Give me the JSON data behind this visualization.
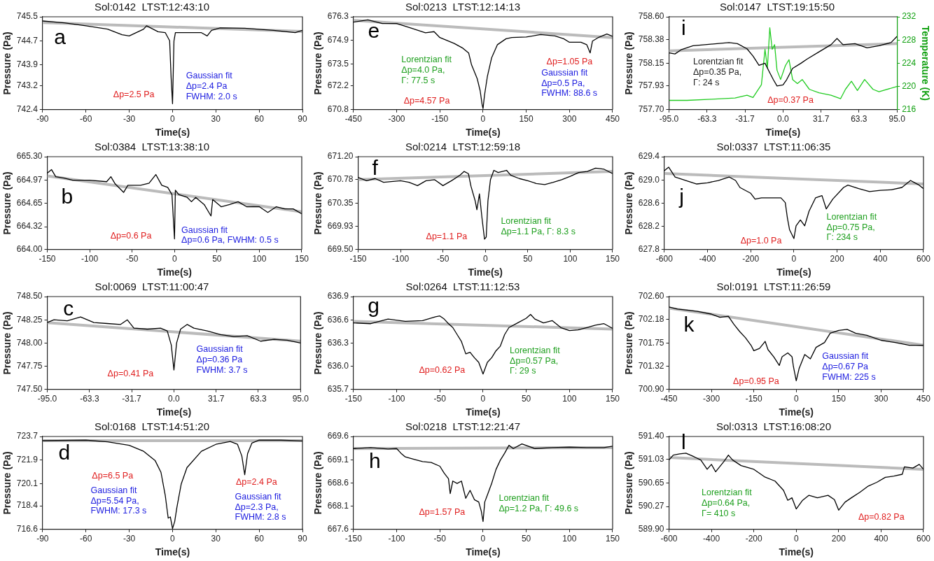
{
  "chart_data": [
    {
      "type": "line",
      "title": "Sol:0142  LTST:12:43:10",
      "xlabel": "Time(s)",
      "ylabel": "Pressure (Pa)",
      "marker": "none",
      "grid": false,
      "xlim": [
        -90,
        90
      ],
      "xticks": [
        -90,
        -60,
        -30,
        0,
        30,
        60,
        90
      ],
      "ylim": [
        742.4,
        745.5
      ],
      "yticks": [
        742.4,
        743.2,
        743.9,
        744.7,
        745.5
      ],
      "series": [
        {
          "color": "#000000",
          "x": [
            -90,
            -75,
            -60,
            -45,
            -35,
            -30,
            -20,
            -18,
            -10,
            -5,
            -2,
            -1,
            0,
            1,
            2,
            10,
            20,
            24,
            27,
            33,
            50,
            70,
            85,
            90
          ],
          "values": [
            745.36,
            745.3,
            745.2,
            745.09,
            744.9,
            744.86,
            745.09,
            745.2,
            745.0,
            744.97,
            744.7,
            743.5,
            742.6,
            744.7,
            744.97,
            744.97,
            744.97,
            744.86,
            745.05,
            745.13,
            745.12,
            745.05,
            744.97,
            745.05
          ]
        },
        {
          "color": "#bbbbbb",
          "x": [
            -90,
            90
          ],
          "values": [
            745.31,
            745.01
          ]
        }
      ],
      "annotations": [
        "a",
        "Δp=2.5 Pa",
        "Gaussian fit\nΔp=2.4 Pa\nFWHM: 2.0 s"
      ]
    },
    {
      "type": "line",
      "title": "Sol:0384  LTST:13:38:10",
      "xlabel": "Time(s)",
      "ylabel": "Pressure (Pa)",
      "marker": "none",
      "grid": false,
      "xlim": [
        -150,
        150
      ],
      "xticks": [
        -150,
        -100,
        -50,
        0,
        50,
        100,
        150
      ],
      "ylim": [
        664.0,
        665.3
      ],
      "yticks": [
        {
          "value": 664,
          "label": "664.00"
        },
        664.32,
        664.65,
        664.97,
        {
          "value": 665.3,
          "label": "665.30"
        }
      ],
      "series": [
        {
          "color": "#000000",
          "x": [
            -150,
            -145,
            -140,
            -130,
            -120,
            -100,
            -80,
            -75,
            -70,
            -60,
            -55,
            -40,
            -30,
            -22,
            -15,
            -8,
            -3,
            0,
            1,
            5,
            15,
            20,
            25,
            35,
            43,
            45,
            55,
            65,
            75,
            85,
            100,
            110,
            120,
            130,
            140,
            150
          ],
          "values": [
            665.07,
            665.12,
            665.02,
            665.0,
            664.97,
            664.97,
            664.95,
            665.02,
            664.92,
            664.8,
            664.9,
            664.9,
            664.93,
            665.05,
            664.9,
            664.87,
            664.77,
            664.15,
            664.83,
            664.77,
            664.73,
            664.67,
            664.73,
            664.63,
            664.47,
            664.7,
            664.6,
            664.63,
            664.67,
            664.6,
            664.6,
            664.52,
            664.6,
            664.57,
            664.57,
            664.5
          ]
        },
        {
          "color": "#bbbbbb",
          "x": [
            -150,
            150
          ],
          "values": [
            665.03,
            664.53
          ]
        }
      ],
      "annotations": [
        "b",
        "Δp=0.6 Pa",
        "Gaussian fit\nΔp=0.6 Pa, FWHM: 0.5 s"
      ]
    },
    {
      "type": "line",
      "title": "Sol:0069  LTST:11:00:47",
      "xlabel": "Time(s)",
      "ylabel": "Pressure (Pa)",
      "marker": "none",
      "grid": false,
      "xlim": [
        -95,
        95
      ],
      "xticks": [
        {
          "value": -95,
          "label": "-95.0"
        },
        -63.3,
        -31.7,
        {
          "value": 0,
          "label": "0.0"
        },
        31.7,
        63.3,
        {
          "value": 95,
          "label": "95.0"
        }
      ],
      "ylim": [
        747.5,
        748.5
      ],
      "yticks": [
        {
          "value": 747.5,
          "label": "747.50"
        },
        747.75,
        {
          "value": 748,
          "label": "748.00"
        },
        748.25,
        {
          "value": 748.5,
          "label": "748.50"
        }
      ],
      "series": [
        {
          "color": "#000000",
          "x": [
            -95,
            -90,
            -80,
            -70,
            -60,
            -50,
            -40,
            -35,
            -30,
            -20,
            -10,
            -5,
            -2,
            0,
            2,
            5,
            10,
            15,
            25,
            35,
            45,
            55,
            65,
            75,
            85,
            95
          ],
          "values": [
            748.22,
            748.25,
            748.24,
            748.28,
            748.22,
            748.21,
            748.2,
            748.25,
            748.16,
            748.15,
            748.16,
            748.13,
            747.98,
            747.71,
            748.0,
            748.15,
            748.2,
            748.16,
            748.13,
            748.09,
            748.07,
            748.08,
            748.02,
            748.04,
            748.03,
            748.0
          ]
        },
        {
          "color": "#bbbbbb",
          "x": [
            -95,
            95
          ],
          "values": [
            748.22,
            748.02
          ]
        }
      ],
      "annotations": [
        "c",
        "Δp=0.41 Pa",
        "Gaussian fit\nΔp=0.36 Pa\nFWHM: 3.7 s"
      ]
    },
    {
      "type": "line",
      "title": "Sol:0168  LTST:14:51:20",
      "xlabel": "Time(s)",
      "ylabel": "Pressure (Pa)",
      "marker": "none",
      "grid": false,
      "xlim": [
        -90,
        90
      ],
      "xticks": [
        -90,
        -60,
        -30,
        0,
        30,
        60,
        90
      ],
      "ylim": [
        716.6,
        723.7
      ],
      "yticks": [
        716.6,
        718.4,
        720.1,
        721.9,
        723.7
      ],
      "series": [
        {
          "color": "#000000",
          "x": [
            -90,
            -60,
            -45,
            -30,
            -20,
            -12,
            -8,
            -5,
            -3,
            -1.5,
            0,
            1.5,
            3,
            6,
            10,
            20,
            30,
            40,
            45,
            48,
            50,
            52,
            55,
            60,
            75,
            90
          ],
          "values": [
            723.38,
            723.42,
            723.29,
            723.02,
            722.57,
            721.85,
            720.96,
            719.17,
            717.46,
            717.55,
            716.66,
            717.2,
            718.27,
            720.06,
            721.32,
            722.57,
            723.1,
            723.32,
            723.1,
            722.21,
            720.78,
            722.39,
            723.2,
            723.43,
            723.42,
            723.36
          ]
        },
        {
          "color": "#bbbbbb",
          "x": [
            -90,
            90
          ],
          "values": [
            723.38,
            723.38
          ]
        }
      ],
      "annotations": [
        "d",
        "Δp=6.5 Pa",
        "Gaussian fit\nΔp=5.54 Pa,\nFWHM: 17.3 s",
        "Δp=2.4 Pa",
        "Gaussian fit\nΔp=2.3 Pa,\nFWHM: 2.8 s"
      ]
    },
    {
      "type": "line",
      "title": "Sol:0213  LTST:12:14:13",
      "xlabel": "Time(s)",
      "ylabel": "Pressure (Pa)",
      "marker": "none",
      "grid": false,
      "xlim": [
        -450,
        450
      ],
      "xticks": [
        -450,
        -300,
        -150,
        0,
        150,
        300,
        450
      ],
      "ylim": [
        670.8,
        676.3
      ],
      "yticks": [
        670.8,
        672.2,
        673.5,
        674.9,
        676.3
      ],
      "series": [
        {
          "color": "#000000",
          "x": [
            -450,
            -400,
            -350,
            -300,
            -250,
            -200,
            -170,
            -150,
            -100,
            -70,
            -50,
            -40,
            -20,
            -10,
            -3,
            0,
            5,
            15,
            30,
            50,
            80,
            100,
            150,
            200,
            250,
            280,
            300,
            340,
            360,
            372,
            380,
            400,
            430,
            450
          ],
          "values": [
            675.98,
            676.12,
            675.9,
            675.9,
            675.63,
            675.35,
            675.42,
            675.07,
            674.72,
            674.44,
            674.16,
            673.46,
            672.62,
            671.92,
            671.08,
            670.87,
            671.64,
            672.76,
            673.88,
            674.65,
            675.0,
            675.07,
            675.1,
            675.25,
            675.17,
            675.0,
            674.79,
            674.79,
            674.65,
            674.16,
            674.86,
            675.07,
            675.28,
            675.14
          ]
        },
        {
          "color": "#bbbbbb",
          "x": [
            -450,
            450
          ],
          "values": [
            676.09,
            675.07
          ]
        }
      ],
      "annotations": [
        "e",
        "Lorentzian fit\nΔp=4.0 Pa,\nΓ: 77.5 s",
        "Δp=4.57 Pa",
        "Δp=1.05 Pa",
        "Gaussian fit\nΔp=0.5 Pa,\nFWHM: 88.6 s"
      ]
    },
    {
      "type": "line",
      "title": "Sol:0214  LTST:12:59:18",
      "xlabel": "Time(s)",
      "ylabel": "Pressure (Pa)",
      "marker": "none",
      "grid": false,
      "xlim": [
        -150,
        150
      ],
      "xticks": [
        -150,
        -100,
        -50,
        0,
        50,
        100,
        150
      ],
      "ylim": [
        669.5,
        671.2
      ],
      "yticks": [
        {
          "value": 669.5,
          "label": "669.50"
        },
        669.93,
        670.35,
        670.78,
        {
          "value": 671.2,
          "label": "671.20"
        }
      ],
      "series": [
        {
          "color": "#000000",
          "x": [
            -150,
            -140,
            -130,
            -120,
            -100,
            -90,
            -80,
            -70,
            -60,
            -50,
            -40,
            -30,
            -25,
            -20,
            -17,
            -12,
            -10,
            -7,
            -4,
            -1,
            1,
            3,
            6,
            10,
            15,
            25,
            30,
            40,
            50,
            60,
            70,
            80,
            90,
            100,
            110,
            120,
            130,
            140,
            150
          ],
          "values": [
            670.82,
            670.76,
            670.8,
            670.73,
            670.76,
            670.73,
            670.67,
            670.76,
            670.78,
            670.67,
            670.76,
            670.86,
            670.93,
            670.89,
            670.66,
            670.39,
            670.23,
            670.52,
            670.08,
            669.69,
            669.73,
            670.39,
            670.78,
            670.95,
            670.91,
            670.95,
            670.86,
            670.8,
            670.76,
            670.71,
            670.69,
            670.73,
            670.78,
            670.84,
            670.91,
            670.93,
            670.99,
            670.97,
            670.89
          ]
        },
        {
          "color": "#bbbbbb",
          "x": [
            -150,
            150
          ],
          "values": [
            670.78,
            670.93
          ]
        }
      ],
      "annotations": [
        "f",
        "Δp=1.1 Pa",
        "Lorentzian fit\nΔp=1.1 Pa, Γ: 8.3 s"
      ]
    },
    {
      "type": "line",
      "title": "Sol:0264  LTST:11:12:53",
      "xlabel": "Time(s)",
      "ylabel": "Pressure (Pa)",
      "marker": "none",
      "grid": false,
      "xlim": [
        -150,
        150
      ],
      "xticks": [
        -150,
        -100,
        -50,
        0,
        50,
        100,
        150
      ],
      "ylim": [
        635.7,
        636.9
      ],
      "yticks": [
        635.7,
        {
          "value": 636,
          "label": "636.0"
        },
        636.3,
        636.6,
        636.9
      ],
      "series": [
        {
          "color": "#000000",
          "x": [
            -150,
            -130,
            -110,
            -90,
            -70,
            -55,
            -50,
            -45,
            -40,
            -35,
            -30,
            -25,
            -20,
            -15,
            -10,
            -5,
            0,
            5,
            10,
            15,
            20,
            25,
            30,
            40,
            50,
            55,
            60,
            70,
            80,
            90,
            100,
            110,
            120,
            130,
            140,
            150
          ],
          "values": [
            636.56,
            636.55,
            636.61,
            636.58,
            636.59,
            636.64,
            636.65,
            636.61,
            636.55,
            636.5,
            636.41,
            636.32,
            636.16,
            636.18,
            636.11,
            636.05,
            635.9,
            636.05,
            636.11,
            636.2,
            636.26,
            636.41,
            636.5,
            636.56,
            636.62,
            636.67,
            636.61,
            636.56,
            636.59,
            636.5,
            636.46,
            636.47,
            636.5,
            636.53,
            636.55,
            636.49
          ]
        },
        {
          "color": "#bbbbbb",
          "x": [
            -150,
            150
          ],
          "values": [
            636.58,
            636.48
          ]
        }
      ],
      "annotations": [
        "g",
        "Δp=0.62 Pa",
        "Lorentzian fit\nΔp=0.57 Pa,\nΓ: 29 s"
      ]
    },
    {
      "type": "line",
      "title": "Sol:0218  LTST:12:21:47",
      "xlabel": "Time(s)",
      "ylabel": "Pressure (Pa)",
      "marker": "none",
      "grid": false,
      "xlim": [
        -150,
        150
      ],
      "xticks": [
        -150,
        -100,
        -50,
        0,
        50,
        100,
        150
      ],
      "ylim": [
        667.6,
        669.6
      ],
      "yticks": [
        667.6,
        668.1,
        668.6,
        669.1,
        669.6
      ],
      "series": [
        {
          "color": "#000000",
          "x": [
            -150,
            -130,
            -110,
            -100,
            -95,
            -90,
            -80,
            -70,
            -60,
            -50,
            -45,
            -40,
            -38,
            -35,
            -30,
            -25,
            -20,
            -15,
            -10,
            -5,
            -2,
            0,
            2,
            5,
            10,
            15,
            20,
            25,
            30,
            35,
            45,
            60,
            80,
            100,
            120,
            140,
            150
          ],
          "values": [
            669.34,
            669.36,
            669.33,
            669.34,
            669.24,
            669.16,
            669.11,
            669.06,
            669.04,
            668.96,
            668.81,
            668.69,
            668.37,
            668.64,
            668.59,
            668.64,
            668.27,
            668.44,
            668.24,
            668.19,
            667.99,
            667.77,
            668.19,
            668.34,
            668.59,
            668.89,
            669.09,
            669.24,
            669.41,
            669.34,
            669.44,
            669.34,
            669.36,
            669.37,
            669.36,
            669.36,
            669.39
          ]
        },
        {
          "color": "#bbbbbb",
          "x": [
            -150,
            150
          ],
          "values": [
            669.34,
            669.36
          ]
        }
      ],
      "annotations": [
        "h",
        "Δp=1.57 Pa",
        "Lorentzian fit\nΔp=1.2 Pa, Γ: 49.6 s"
      ]
    },
    {
      "type": "line",
      "title": "Sol:0147  LTST:19:15:50",
      "xlabel": "Time(s)",
      "ylabel": "Pressure (Pa)",
      "y2label": "Temperature (K)",
      "marker": "none",
      "grid": false,
      "xlim": [
        -95,
        95
      ],
      "xticks": [
        {
          "value": -95,
          "label": "-95.0"
        },
        -63.3,
        -31.7,
        {
          "value": 0,
          "label": "0.0"
        },
        31.7,
        63.3,
        {
          "value": 95,
          "label": "95.0"
        }
      ],
      "ylim": [
        757.7,
        758.6
      ],
      "yticks": [
        {
          "value": 757.7,
          "label": "757.70"
        },
        757.93,
        758.15,
        758.38,
        {
          "value": 758.6,
          "label": "758.60"
        }
      ],
      "y2lim": [
        216,
        232
      ],
      "y2ticks": [
        216,
        220,
        224,
        228,
        232
      ],
      "series": [
        {
          "color": "#000000",
          "x": [
            -95,
            -90,
            -85,
            -75,
            -65,
            -55,
            -45,
            -38,
            -30,
            -25,
            -20,
            -15,
            -12,
            -8,
            -5,
            0,
            3,
            8,
            15,
            20,
            30,
            40,
            45,
            50,
            60,
            70,
            80,
            90,
            95
          ],
          "values": [
            758.25,
            758.24,
            758.28,
            758.32,
            758.33,
            758.34,
            758.35,
            758.34,
            758.29,
            758.22,
            758.13,
            758.15,
            758.08,
            757.99,
            757.93,
            757.94,
            757.99,
            758.1,
            758.15,
            758.19,
            758.26,
            758.33,
            758.39,
            758.33,
            758.34,
            758.3,
            758.32,
            758.35,
            758.41
          ]
        },
        {
          "color": "#bbbbbb",
          "x": [
            -95,
            95
          ],
          "values": [
            758.27,
            758.34
          ]
        },
        {
          "color": "#22cc22",
          "axis": "y2",
          "x": [
            -95,
            -80,
            -60,
            -40,
            -30,
            -25,
            -18,
            -15,
            -13,
            -11,
            -9,
            -7,
            -5,
            -2,
            2,
            5,
            8,
            12,
            16,
            22,
            30,
            40,
            48,
            52,
            57,
            62,
            68,
            75,
            80,
            95
          ],
          "values": [
            217.6,
            217.6,
            217.8,
            218.0,
            218.5,
            218.1,
            220.3,
            226.4,
            223.2,
            230.1,
            226.4,
            227.2,
            222.8,
            221.2,
            223.6,
            224.6,
            221.2,
            220.5,
            221.2,
            219.5,
            218.9,
            218.5,
            217.9,
            219.5,
            220.9,
            219.3,
            221.2,
            219.5,
            219.1,
            220.0
          ]
        }
      ],
      "annotations": [
        "i",
        "Lorentzian fit\nΔp=0.35 Pa,\nΓ: 24 s",
        "Δp=0.37 Pa"
      ]
    },
    {
      "type": "line",
      "title": "Sol:0337  LTST:11:06:35",
      "xlabel": "Time(s)",
      "ylabel": "Pressure (Pa)",
      "marker": "none",
      "grid": false,
      "xlim": [
        -600,
        600
      ],
      "xticks": [
        -600,
        -400,
        -200,
        0,
        200,
        400,
        600
      ],
      "ylim": [
        627.8,
        629.4
      ],
      "yticks": [
        627.8,
        628.2,
        628.6,
        {
          "value": 629,
          "label": "629.0"
        },
        629.4
      ],
      "series": [
        {
          "color": "#000000",
          "x": [
            -600,
            -580,
            -550,
            -500,
            -450,
            -400,
            -350,
            -300,
            -270,
            -250,
            -220,
            -200,
            -180,
            -150,
            -100,
            -60,
            -40,
            -30,
            -20,
            0,
            10,
            30,
            50,
            70,
            100,
            130,
            150,
            180,
            230,
            250,
            300,
            350,
            400,
            450,
            500,
            540,
            560,
            580,
            600
          ],
          "values": [
            629.16,
            629.22,
            629.05,
            628.99,
            628.93,
            628.95,
            628.99,
            629.05,
            628.99,
            628.87,
            628.81,
            628.77,
            628.67,
            628.69,
            628.69,
            628.69,
            628.61,
            628.34,
            628.14,
            627.99,
            628.21,
            628.31,
            628.21,
            628.46,
            628.69,
            628.73,
            628.5,
            628.67,
            628.87,
            628.91,
            628.85,
            628.8,
            628.82,
            628.83,
            628.87,
            628.99,
            628.95,
            628.91,
            628.85
          ]
        },
        {
          "color": "#bbbbbb",
          "x": [
            -600,
            600
          ],
          "values": [
            629.11,
            628.93
          ]
        }
      ],
      "annotations": [
        "j",
        "Δp=1.0 Pa",
        "Lorentzian fit\nΔp=0.75 Pa,\nΓ: 234 s"
      ]
    },
    {
      "type": "line",
      "title": "Sol:0191  LTST:11:26:59",
      "xlabel": "Time(s)",
      "ylabel": "Pressure (Pa)",
      "marker": "none",
      "grid": false,
      "xlim": [
        -450,
        450
      ],
      "xticks": [
        -450,
        -300,
        -150,
        0,
        150,
        300,
        450
      ],
      "ylim": [
        700.9,
        702.6
      ],
      "yticks": [
        {
          "value": 700.9,
          "label": "700.90"
        },
        701.32,
        701.75,
        702.18,
        {
          "value": 702.6,
          "label": "702.60"
        }
      ],
      "series": [
        {
          "color": "#000000",
          "x": [
            -450,
            -420,
            -380,
            -350,
            -300,
            -270,
            -240,
            -220,
            -200,
            -180,
            -160,
            -150,
            -130,
            -110,
            -100,
            -80,
            -60,
            -50,
            -30,
            -15,
            -10,
            0,
            10,
            30,
            50,
            70,
            100,
            120,
            150,
            180,
            210,
            250,
            300,
            350,
            400,
            450
          ],
          "values": [
            702.41,
            702.37,
            702.35,
            702.33,
            702.28,
            702.22,
            702.24,
            702.09,
            701.96,
            701.85,
            701.71,
            701.61,
            701.65,
            701.78,
            701.63,
            701.5,
            701.34,
            701.5,
            701.57,
            701.5,
            701.32,
            701.06,
            701.28,
            701.54,
            701.46,
            701.67,
            701.76,
            701.93,
            701.98,
            702.0,
            701.93,
            701.89,
            701.8,
            701.76,
            701.71,
            701.71
          ]
        },
        {
          "color": "#bbbbbb",
          "x": [
            -450,
            450
          ],
          "values": [
            702.39,
            701.71
          ]
        }
      ],
      "annotations": [
        "k",
        "Δp=0.95 Pa",
        "Gaussian fit\nΔp=0.67 Pa\nFWHM: 225 s"
      ]
    },
    {
      "type": "line",
      "title": "Sol:0313  LTST:16:08:20",
      "xlabel": "Time(s)",
      "ylabel": "Pressure (Pa)",
      "marker": "none",
      "grid": false,
      "xlim": [
        -600,
        600
      ],
      "xticks": [
        -600,
        -400,
        -200,
        0,
        200,
        400,
        600
      ],
      "ylim": [
        589.9,
        591.4
      ],
      "yticks": [
        {
          "value": 589.9,
          "label": "589.90"
        },
        590.27,
        590.65,
        591.03,
        {
          "value": 591.4,
          "label": "591.40"
        }
      ],
      "series": [
        {
          "color": "#000000",
          "x": [
            -600,
            -580,
            -550,
            -520,
            -480,
            -450,
            -420,
            -400,
            -380,
            -340,
            -320,
            -300,
            -260,
            -200,
            -150,
            -100,
            -60,
            -40,
            -20,
            0,
            30,
            60,
            100,
            150,
            180,
            200,
            230,
            260,
            300,
            340,
            380,
            420,
            460,
            500,
            510,
            550,
            580,
            600
          ],
          "values": [
            591.02,
            591.1,
            591.12,
            591.13,
            591.07,
            591.02,
            590.87,
            590.95,
            590.83,
            591.0,
            591.1,
            591.02,
            590.93,
            590.87,
            590.75,
            590.68,
            590.53,
            590.37,
            590.41,
            590.23,
            590.37,
            590.45,
            590.41,
            590.45,
            590.38,
            590.21,
            590.34,
            590.41,
            590.5,
            590.6,
            590.66,
            590.74,
            590.76,
            590.79,
            590.91,
            590.89,
            590.95,
            590.87
          ]
        },
        {
          "color": "#bbbbbb",
          "x": [
            -600,
            600
          ],
          "values": [
            591.06,
            590.87
          ]
        }
      ],
      "annotations": [
        "l",
        "Lorentzian fit\nΔp=0.64 Pa,\nΓ= 410 s",
        "Δp=0.82 Pa"
      ]
    }
  ]
}
